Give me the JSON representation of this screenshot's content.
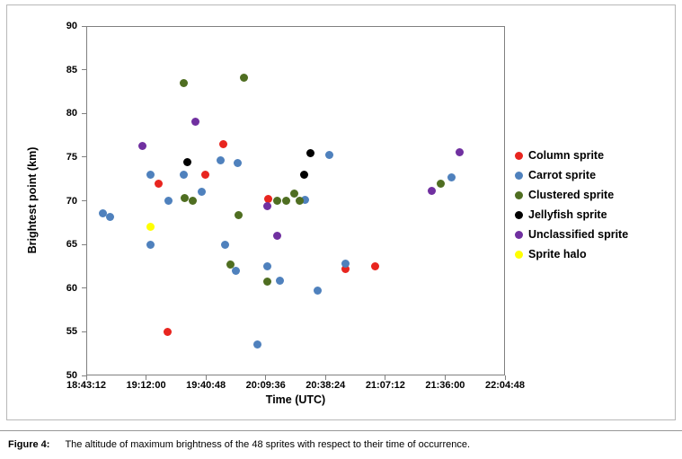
{
  "figure": {
    "caption_label": "Figure 4:",
    "caption_text": "The altitude of maximum brightness of the 48 sprites with respect to their time of occurrence."
  },
  "chart_data": {
    "type": "scatter",
    "title": "",
    "xlabel": "Time (UTC)",
    "ylabel": "Brightest point (km)",
    "x_ticks": [
      "18:43:12",
      "19:12:00",
      "19:40:48",
      "20:09:36",
      "20:38:24",
      "21:07:12",
      "21:36:00",
      "22:04:48"
    ],
    "y_ticks": [
      50,
      55,
      60,
      65,
      70,
      75,
      80,
      85,
      90
    ],
    "ylim": [
      50,
      90
    ],
    "grid": false,
    "legend_position": "right",
    "point_count": 48,
    "series": [
      {
        "name": "Column sprite",
        "color": "#e8251f",
        "points": [
          [
            "19:17:50",
            72.0
          ],
          [
            "19:22:30",
            55.0
          ],
          [
            "19:40:40",
            73.0
          ],
          [
            "19:49:00",
            76.5
          ],
          [
            "20:11:00",
            70.2
          ],
          [
            "20:47:50",
            62.2
          ],
          [
            "21:02:30",
            62.5
          ]
        ]
      },
      {
        "name": "Carrot sprite",
        "color": "#4f81bd",
        "points": [
          [
            "18:51:00",
            68.6
          ],
          [
            "18:54:50",
            68.1
          ],
          [
            "19:13:55",
            73.0
          ],
          [
            "19:13:55",
            65.0
          ],
          [
            "19:22:35",
            70.0
          ],
          [
            "19:30:20",
            73.0
          ],
          [
            "19:39:00",
            71.0
          ],
          [
            "19:48:05",
            74.6
          ],
          [
            "19:50:15",
            65.0
          ],
          [
            "19:55:25",
            62.0
          ],
          [
            "19:55:55",
            74.3
          ],
          [
            "20:05:25",
            53.5
          ],
          [
            "20:10:35",
            62.5
          ],
          [
            "20:16:15",
            60.8
          ],
          [
            "20:28:45",
            70.1
          ],
          [
            "20:34:25",
            59.7
          ],
          [
            "20:40:25",
            75.2
          ],
          [
            "20:47:50",
            62.8
          ],
          [
            "21:39:15",
            72.7
          ]
        ]
      },
      {
        "name": "Clustered sprite",
        "color": "#4f6e21",
        "points": [
          [
            "19:30:20",
            83.5
          ],
          [
            "19:30:35",
            70.3
          ],
          [
            "19:34:40",
            70.0
          ],
          [
            "19:52:50",
            62.7
          ],
          [
            "19:56:20",
            68.4
          ],
          [
            "19:58:55",
            84.1
          ],
          [
            "20:10:10",
            60.7
          ],
          [
            "20:14:55",
            70.0
          ],
          [
            "20:19:40",
            70.0
          ],
          [
            "20:23:10",
            70.8
          ],
          [
            "20:25:45",
            70.0
          ],
          [
            "21:33:40",
            72.0
          ]
        ]
      },
      {
        "name": "Jellyfish sprite",
        "color": "#000000",
        "points": [
          [
            "19:32:05",
            74.4
          ],
          [
            "20:27:55",
            73.0
          ],
          [
            "20:31:20",
            75.5
          ]
        ]
      },
      {
        "name": "Unclassified sprite",
        "color": "#7030a0",
        "points": [
          [
            "19:10:25",
            76.3
          ],
          [
            "19:35:35",
            79.0
          ],
          [
            "20:10:10",
            69.4
          ],
          [
            "20:15:20",
            66.0
          ],
          [
            "21:29:45",
            71.1
          ],
          [
            "21:42:45",
            75.6
          ]
        ]
      },
      {
        "name": "Sprite halo",
        "color": "#ffff00",
        "points": [
          [
            "19:13:55",
            67.0
          ]
        ]
      }
    ]
  }
}
